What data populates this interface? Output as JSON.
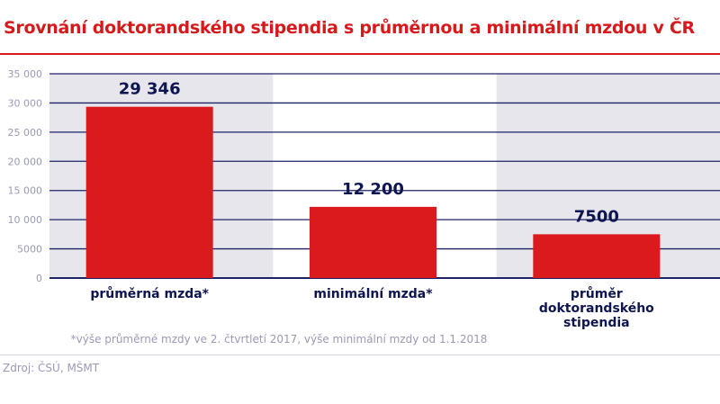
{
  "chart_data": {
    "type": "bar",
    "title": "Srovnání doktorandského stipendia s průměrnou a minimální mzdou v ČR",
    "categories": [
      [
        "průměrná mzda*"
      ],
      [
        "minimální mzda*"
      ],
      [
        "průměr",
        "doktorandského",
        "stipendia"
      ]
    ],
    "values": [
      29346,
      12200,
      7500
    ],
    "data_labels": [
      "29 346",
      "12 200",
      "7500"
    ],
    "yticks": [
      0,
      5000,
      10000,
      15000,
      20000,
      25000,
      30000,
      35000
    ],
    "ytick_labels": [
      "0",
      "5000",
      "10 000",
      "15 000",
      "20 000",
      "25 000",
      "30 000",
      "35 000"
    ],
    "ylim": [
      0,
      35000
    ],
    "xlabel": "",
    "ylabel": "",
    "grid": true,
    "colors": {
      "bar": "#da1a1c",
      "label": "#0e1550",
      "grid": "#1c2466",
      "band": "#e6e6ec",
      "tick": "#9a9ab5",
      "title": "#d7191c"
    }
  },
  "footnote": "*výše průměrné mzdy ve 2. čtvrtletí 2017, výše minimální mzdy od 1.1.2018",
  "source": "Zdroj: ČSÚ, MŠMT"
}
